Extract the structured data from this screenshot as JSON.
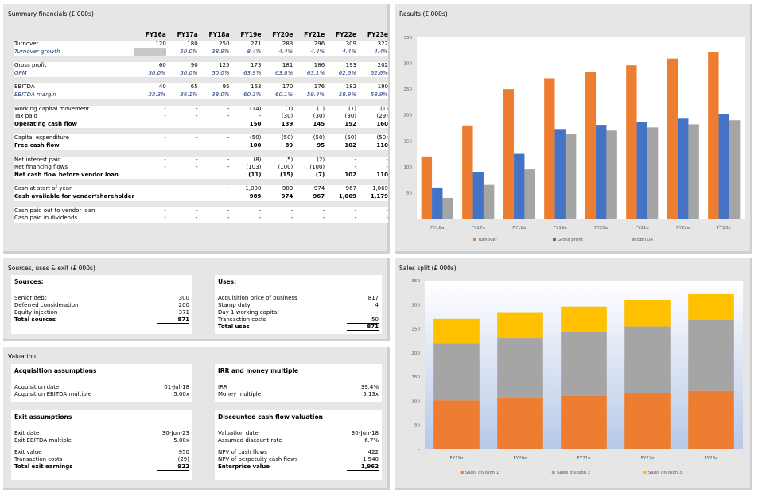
{
  "summary": {
    "title": "Summary financials (£ 000s)",
    "years": [
      "FY16a",
      "FY17a",
      "FY18a",
      "FY19e",
      "FY20e",
      "FY21e",
      "FY22e",
      "FY23e"
    ],
    "groups": [
      [
        {
          "label": "Turnover",
          "values": [
            "120",
            "180",
            "250",
            "271",
            "283",
            "296",
            "309",
            "322"
          ],
          "style": ""
        },
        {
          "label": "Turnover growth",
          "values": [
            "-",
            "50.0%",
            "38.9%",
            "8.4%",
            "4.4%",
            "4.4%",
            "4.4%",
            "4.4%"
          ],
          "style": "it"
        }
      ],
      [
        {
          "label": "Gross profit",
          "values": [
            "60",
            "90",
            "125",
            "173",
            "181",
            "186",
            "193",
            "202"
          ],
          "style": ""
        },
        {
          "label": "GPM",
          "values": [
            "50.0%",
            "50.0%",
            "50.0%",
            "63.9%",
            "63.8%",
            "63.1%",
            "62.6%",
            "62.6%"
          ],
          "style": "it"
        }
      ],
      [
        {
          "label": "EBITDA",
          "values": [
            "40",
            "65",
            "95",
            "163",
            "170",
            "176",
            "182",
            "190"
          ],
          "style": ""
        },
        {
          "label": "EBITDA margin",
          "values": [
            "33.3%",
            "36.1%",
            "38.0%",
            "60.3%",
            "60.1%",
            "59.4%",
            "58.9%",
            "58.9%"
          ],
          "style": "it"
        }
      ],
      [
        {
          "label": "Working capital movement",
          "values": [
            "-",
            "-",
            "-",
            "(14)",
            "(1)",
            "(1)",
            "(1)",
            "(1)"
          ],
          "style": ""
        },
        {
          "label": "Tax paid",
          "values": [
            "-",
            "-",
            "-",
            "-",
            "(30)",
            "(30)",
            "(30)",
            "(29)"
          ],
          "style": ""
        },
        {
          "label": "Operating cash flow",
          "values": [
            "",
            "",
            "",
            "150",
            "139",
            "145",
            "152",
            "160"
          ],
          "style": "b"
        }
      ],
      [
        {
          "label": "Capital expenditure",
          "values": [
            "-",
            "-",
            "-",
            "(50)",
            "(50)",
            "(50)",
            "(50)",
            "(50)"
          ],
          "style": ""
        },
        {
          "label": "Free cash flow",
          "values": [
            "",
            "",
            "",
            "100",
            "89",
            "95",
            "102",
            "110"
          ],
          "style": "b"
        }
      ],
      [
        {
          "label": "Net interest paid",
          "values": [
            "-",
            "-",
            "-",
            "(8)",
            "(5)",
            "(2)",
            "-",
            "-"
          ],
          "style": ""
        },
        {
          "label": "Net financing flows",
          "values": [
            "-",
            "-",
            "-",
            "(103)",
            "(100)",
            "(100)",
            "-",
            "-"
          ],
          "style": ""
        },
        {
          "label": "Net cash flow before vendor loan",
          "values": [
            "",
            "",
            "",
            "(11)",
            "(15)",
            "(7)",
            "102",
            "110"
          ],
          "style": "b"
        }
      ],
      [
        {
          "label": "Cash at start of year",
          "values": [
            "-",
            "-",
            "-",
            "1,000",
            "989",
            "974",
            "967",
            "1,069"
          ],
          "style": ""
        },
        {
          "label": "Cash available for vendor/shareholder",
          "values": [
            "",
            "",
            "",
            "989",
            "974",
            "967",
            "1,069",
            "1,179"
          ],
          "style": "b"
        }
      ],
      [
        {
          "label": "Cash paid out to vendor loan",
          "values": [
            "-",
            "-",
            "-",
            "-",
            "-",
            "-",
            "-",
            "-"
          ],
          "style": ""
        },
        {
          "label": "Cash paid in dividends",
          "values": [
            "-",
            "-",
            "-",
            "-",
            "-",
            "-",
            "-",
            "-"
          ],
          "style": ""
        }
      ]
    ]
  },
  "sources": {
    "title": "Sources, uses & exit (£ 000s)",
    "sources_heading": "Sources:",
    "sources_items": [
      {
        "label": "Senior debt",
        "value": "300"
      },
      {
        "label": "Deferred consideration",
        "value": "200"
      },
      {
        "label": "Equity injection",
        "value": "371"
      }
    ],
    "sources_total": {
      "label": "Total sources",
      "value": "871"
    },
    "uses_heading": "Uses:",
    "uses_items": [
      {
        "label": "Acquisition price of business",
        "value": "817"
      },
      {
        "label": "Stamp duty",
        "value": "4"
      },
      {
        "label": "Day 1 working capital",
        "value": "-"
      },
      {
        "label": "Transaction costs",
        "value": "50"
      }
    ],
    "uses_total": {
      "label": "Total uses",
      "value": "871"
    }
  },
  "valuation": {
    "title": "Valuation",
    "acq_heading": "Acquisition assumptions",
    "acq_items": [
      {
        "label": "Acquisition date",
        "value": "01-Jul-18"
      },
      {
        "label": "Acquisition EBITDA multiple",
        "value": "5.00x"
      }
    ],
    "irr_heading": "IRR and money multiple",
    "irr_items": [
      {
        "label": "IRR",
        "value": "39.4%"
      },
      {
        "label": "Money multiple",
        "value": "5.13x"
      }
    ],
    "exit_heading": "Exit assumptions",
    "exit_items_a": [
      {
        "label": "Exit date",
        "value": "30-Jun-23"
      },
      {
        "label": "Exit EBITDA multiple",
        "value": "5.00x"
      }
    ],
    "exit_items_b": [
      {
        "label": "Exit value",
        "value": "950"
      },
      {
        "label": "Transaction costs",
        "value": "(29)"
      }
    ],
    "exit_total": {
      "label": "Total exit earnings",
      "value": "922"
    },
    "dcf_heading": "Discounted cash flow valuation",
    "dcf_items_a": [
      {
        "label": "Valuation date",
        "value": "30-Jun-18"
      },
      {
        "label": "Assumed discount rate",
        "value": "6.7%"
      }
    ],
    "dcf_items_b": [
      {
        "label": "NPV of cash flows",
        "value": "422"
      },
      {
        "label": "NPV of perpetuity cash flows",
        "value": "1,540"
      }
    ],
    "dcf_total": {
      "label": "Enterprise value",
      "value": "1,962"
    }
  },
  "chart_data": [
    {
      "type": "bar",
      "title": "Results (£ 000s)",
      "categories": [
        "FY16a",
        "FY17a",
        "FY18a",
        "FY19e",
        "FY20e",
        "FY21e",
        "FY22e",
        "FY23e"
      ],
      "series": [
        {
          "name": "Turnover",
          "color": "#ed7d31",
          "values": [
            120,
            180,
            250,
            271,
            283,
            296,
            309,
            322
          ]
        },
        {
          "name": "Gross profit",
          "color": "#4472c4",
          "values": [
            60,
            90,
            125,
            173,
            181,
            186,
            193,
            202
          ]
        },
        {
          "name": "EBITDA",
          "color": "#a5a5a5",
          "values": [
            40,
            65,
            95,
            163,
            170,
            176,
            182,
            190
          ]
        }
      ],
      "ylim": [
        0,
        350
      ],
      "yticks": [
        "-",
        "50",
        "100",
        "150",
        "200",
        "250",
        "300",
        "350"
      ],
      "legend": "bottom"
    },
    {
      "type": "bar",
      "stacked": true,
      "title": "Sales split (£ 000s)",
      "categories": [
        "FY19e",
        "FY20e",
        "FY21e",
        "FY22e",
        "FY23e"
      ],
      "series": [
        {
          "name": "Sales division 1",
          "color": "#ed7d31",
          "values": [
            102,
            106,
            111,
            116,
            121
          ]
        },
        {
          "name": "Sales division 2",
          "color": "#a5a5a5",
          "values": [
            117,
            125,
            132,
            139,
            147
          ]
        },
        {
          "name": "Sales division 3",
          "color": "#ffc000",
          "values": [
            52,
            52,
            53,
            54,
            54
          ]
        }
      ],
      "ylim": [
        0,
        350
      ],
      "yticks": [
        "-",
        "50",
        "100",
        "150",
        "200",
        "250",
        "300",
        "350"
      ],
      "legend": "bottom"
    }
  ]
}
